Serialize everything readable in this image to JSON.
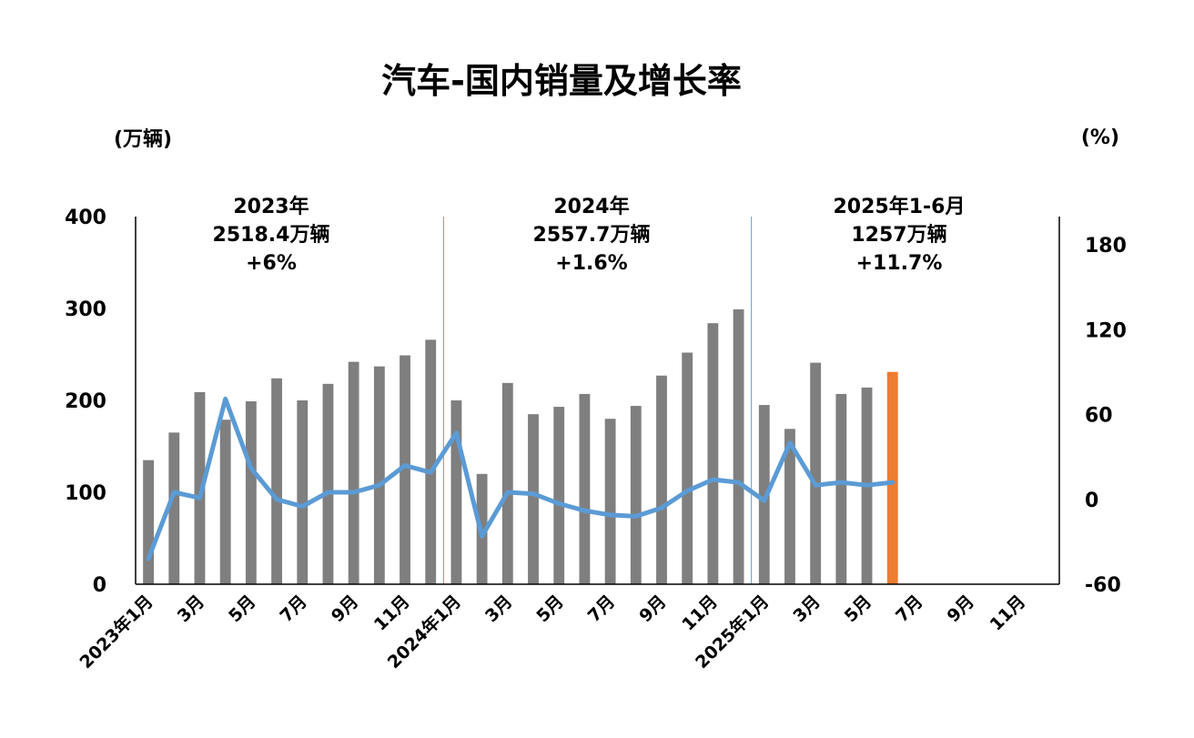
{
  "chart_data": {
    "type": "bar+line",
    "title": "汽车-国内销量及增长率",
    "y_left_unit": "(万辆)",
    "y_right_unit": "(%)",
    "y_left_ticks": [
      "0",
      "100",
      "200",
      "300",
      "400"
    ],
    "y_right_ticks": [
      "-60",
      "0",
      "60",
      "120",
      "180"
    ],
    "ylim_left": [
      0,
      400
    ],
    "ylim_right": [
      -60,
      200
    ],
    "x_labels": [
      "2023年1月",
      "3月",
      "5月",
      "7月",
      "9月",
      "11月",
      "2024年1月",
      "3月",
      "5月",
      "7月",
      "9月",
      "11月",
      "2025年1月",
      "3月",
      "5月",
      "7月",
      "9月",
      "11月"
    ],
    "x_label_month_index": [
      0,
      2,
      4,
      6,
      8,
      10,
      12,
      14,
      16,
      18,
      20,
      22,
      24,
      26,
      28,
      30,
      32,
      34
    ],
    "months_total": 36,
    "annotations": [
      {
        "line1": "2023年",
        "line2": "2518.4万辆",
        "line3": "+6%"
      },
      {
        "line1": "2024年",
        "line2": "2557.7万辆",
        "line3": "+1.6%"
      },
      {
        "line1": "2025年1-6月",
        "line2": "1257万辆",
        "line3": "+11.7%"
      }
    ],
    "series": [
      {
        "name": "国内销量",
        "axis": "left",
        "type": "bar",
        "color": "#7f7f7f",
        "highlight_color": "#ed7d31",
        "highlight_index": 29,
        "values": [
          135,
          165,
          209,
          179,
          199,
          224,
          200,
          218,
          242,
          237,
          249,
          266,
          200,
          120,
          219,
          185,
          193,
          207,
          180,
          194,
          227,
          252,
          284,
          299,
          195,
          169,
          241,
          207,
          214,
          231
        ]
      },
      {
        "name": "增长率",
        "axis": "right",
        "type": "line",
        "color": "#5b9bd5",
        "values": [
          -42,
          5,
          1,
          71,
          22,
          0,
          -5,
          5,
          5,
          10,
          24,
          19,
          47,
          -26,
          5,
          4,
          -3,
          -8,
          -11,
          -12,
          -6,
          6,
          14,
          12,
          -1,
          40,
          10,
          12,
          10,
          12
        ]
      }
    ]
  }
}
